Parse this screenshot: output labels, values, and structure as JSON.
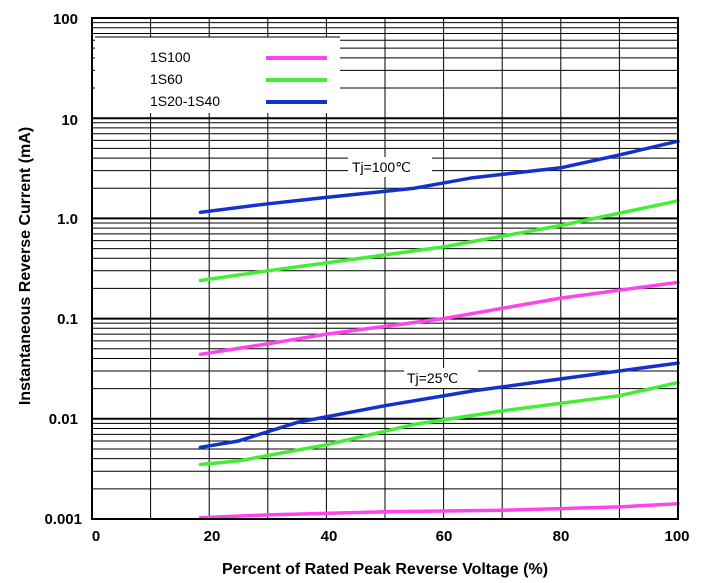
{
  "chart_data": {
    "type": "line",
    "xlabel": "Percent of Rated Peak Reverse Voltage (%)",
    "ylabel": "Instantaneous Reverse Current (mA)",
    "xlim": [
      0,
      100
    ],
    "ylim": [
      0.001,
      100
    ],
    "yscale": "log",
    "grid": true,
    "x_ticks": [
      "0",
      "20",
      "40",
      "60",
      "80",
      "100"
    ],
    "y_ticks": [
      "0.001",
      "0.01",
      "0.1",
      "1.0",
      "10",
      "100"
    ],
    "legend": {
      "placement": "top-left",
      "entries": [
        {
          "label": "1S100",
          "color": "#ff44ee"
        },
        {
          "label": "1S60",
          "color": "#44ee33"
        },
        {
          "label": "1S20-1S40",
          "color": "#1133cc"
        }
      ]
    },
    "annotations": [
      "Tj=100℃",
      "Tj=25℃"
    ],
    "series": [
      {
        "name": "1S20-1S40",
        "condition": "Tj=100℃",
        "color": "#1133cc",
        "x": [
          18.5,
          30,
          40,
          55,
          65,
          80,
          90,
          100
        ],
        "y": [
          1.15,
          1.4,
          1.62,
          2.0,
          2.55,
          3.2,
          4.3,
          5.9
        ]
      },
      {
        "name": "1S60",
        "condition": "Tj=100℃",
        "color": "#44ee33",
        "x": [
          18.5,
          30,
          40,
          60,
          80,
          100
        ],
        "y": [
          0.24,
          0.3,
          0.36,
          0.52,
          0.85,
          1.5
        ]
      },
      {
        "name": "1S100",
        "condition": "Tj=100℃",
        "color": "#ff44ee",
        "x": [
          18.5,
          30,
          40,
          60,
          80,
          100
        ],
        "y": [
          0.044,
          0.056,
          0.07,
          0.1,
          0.16,
          0.23
        ]
      },
      {
        "name": "1S20-1S40",
        "condition": "Tj=25℃",
        "color": "#1133cc",
        "x": [
          18.5,
          25,
          35,
          50,
          65,
          80,
          100
        ],
        "y": [
          0.0052,
          0.006,
          0.0092,
          0.0135,
          0.019,
          0.025,
          0.036
        ]
      },
      {
        "name": "1S60",
        "condition": "Tj=25℃",
        "color": "#44ee33",
        "x": [
          18.5,
          25,
          40,
          55,
          70,
          90,
          100
        ],
        "y": [
          0.0035,
          0.0038,
          0.0055,
          0.0088,
          0.012,
          0.017,
          0.023
        ]
      },
      {
        "name": "1S100",
        "condition": "Tj=25℃",
        "color": "#ff44ee",
        "x": [
          18.5,
          30,
          50,
          70,
          90,
          100
        ],
        "y": [
          0.00103,
          0.0011,
          0.00118,
          0.00122,
          0.00132,
          0.00142
        ]
      }
    ]
  }
}
